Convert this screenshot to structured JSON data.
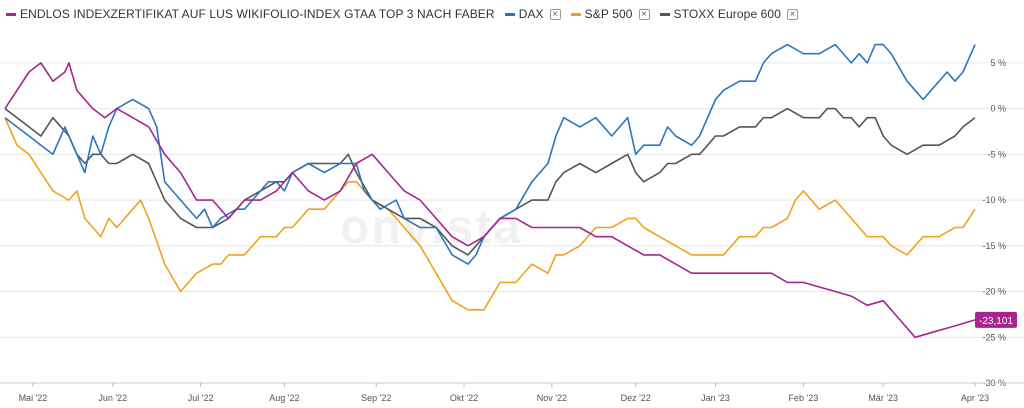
{
  "legend": [
    {
      "label": "ENDLOS INDEXZERTIFIKAT AUF LUS WIKIFOLIO-INDEX GTAA TOP 3 NACH FABER",
      "color": "#a8248f",
      "removable": false
    },
    {
      "label": "DAX",
      "color": "#2d76be",
      "removable": true,
      "remove_icon": "×"
    },
    {
      "label": "S&P 500",
      "color": "#f4a01f",
      "removable": true,
      "remove_icon": "×"
    },
    {
      "label": "STOXX Europe 600",
      "color": "#555555",
      "removable": true,
      "remove_icon": "×"
    }
  ],
  "watermark": "onvista",
  "last_value_label": "-23,101",
  "chart_data": {
    "type": "line",
    "x_unit": "trading day index from start of window",
    "x_tick_labels": [
      "Mai '22",
      "Jun '22",
      "Jul '22",
      "Aug '22",
      "Sep '22",
      "Okt '22",
      "Nov '22",
      "Dez '22",
      "Jan '23",
      "Feb '23",
      "Mär '23",
      "Apr '23"
    ],
    "x_tick_days": [
      7,
      27,
      49,
      70,
      93,
      115,
      137,
      158,
      178,
      200,
      220,
      243
    ],
    "x_range": [
      0,
      243
    ],
    "y_tick_labels": [
      "5 %",
      "0 %",
      "-5 %",
      "-10 %",
      "-15 %",
      "-20 %",
      "-25 %",
      "-30 %"
    ],
    "y_ticks": [
      5,
      0,
      -5,
      -10,
      -15,
      -20,
      -25,
      -30
    ],
    "ylim": [
      -30,
      7.5
    ],
    "grid": "horizontal",
    "legend_position": "top",
    "series": [
      {
        "name": "ENDLOS INDEXZERTIFIKAT AUF LUS WIKIFOLIO-INDEX GTAA TOP 3 NACH FABER",
        "color": "#a8248f",
        "points": [
          [
            0,
            0
          ],
          [
            3,
            2
          ],
          [
            6,
            4
          ],
          [
            9,
            5
          ],
          [
            12,
            3
          ],
          [
            15,
            4
          ],
          [
            16,
            5
          ],
          [
            18,
            2
          ],
          [
            22,
            0
          ],
          [
            25,
            -1
          ],
          [
            28,
            0
          ],
          [
            32,
            -1
          ],
          [
            36,
            -2
          ],
          [
            40,
            -5
          ],
          [
            44,
            -7
          ],
          [
            48,
            -10
          ],
          [
            52,
            -10
          ],
          [
            56,
            -12
          ],
          [
            60,
            -10
          ],
          [
            64,
            -10
          ],
          [
            68,
            -9
          ],
          [
            72,
            -7
          ],
          [
            76,
            -9
          ],
          [
            80,
            -10
          ],
          [
            84,
            -9
          ],
          [
            88,
            -6
          ],
          [
            92,
            -5
          ],
          [
            96,
            -7
          ],
          [
            100,
            -9
          ],
          [
            104,
            -10
          ],
          [
            108,
            -12
          ],
          [
            112,
            -14
          ],
          [
            116,
            -15
          ],
          [
            120,
            -14
          ],
          [
            124,
            -12
          ],
          [
            128,
            -12
          ],
          [
            132,
            -13
          ],
          [
            136,
            -13
          ],
          [
            140,
            -13
          ],
          [
            144,
            -13
          ],
          [
            148,
            -14
          ],
          [
            152,
            -14
          ],
          [
            156,
            -15
          ],
          [
            160,
            -16
          ],
          [
            164,
            -16
          ],
          [
            168,
            -17
          ],
          [
            172,
            -18
          ],
          [
            176,
            -18
          ],
          [
            180,
            -18
          ],
          [
            184,
            -18
          ],
          [
            188,
            -18
          ],
          [
            192,
            -18
          ],
          [
            196,
            -19
          ],
          [
            200,
            -19
          ],
          [
            204,
            -19.5
          ],
          [
            208,
            -20
          ],
          [
            212,
            -20.5
          ],
          [
            216,
            -21.5
          ],
          [
            220,
            -21
          ],
          [
            224,
            -23
          ],
          [
            228,
            -25
          ],
          [
            232,
            -24.5
          ],
          [
            236,
            -24
          ],
          [
            240,
            -23.5
          ],
          [
            243,
            -23.1
          ]
        ]
      },
      {
        "name": "DAX",
        "color": "#2d76be",
        "points": [
          [
            0,
            -1
          ],
          [
            3,
            -2
          ],
          [
            6,
            -3
          ],
          [
            9,
            -4
          ],
          [
            12,
            -5
          ],
          [
            15,
            -2
          ],
          [
            18,
            -5
          ],
          [
            20,
            -7
          ],
          [
            22,
            -3
          ],
          [
            24,
            -5
          ],
          [
            26,
            -2
          ],
          [
            28,
            0
          ],
          [
            32,
            1
          ],
          [
            36,
            0
          ],
          [
            38,
            -2
          ],
          [
            40,
            -8
          ],
          [
            44,
            -10
          ],
          [
            48,
            -12
          ],
          [
            50,
            -11
          ],
          [
            52,
            -13
          ],
          [
            54,
            -12
          ],
          [
            58,
            -11
          ],
          [
            60,
            -11
          ],
          [
            64,
            -9
          ],
          [
            66,
            -8
          ],
          [
            68,
            -8
          ],
          [
            70,
            -9
          ],
          [
            72,
            -7
          ],
          [
            76,
            -6
          ],
          [
            80,
            -7
          ],
          [
            84,
            -6
          ],
          [
            88,
            -6
          ],
          [
            90,
            -9
          ],
          [
            94,
            -11
          ],
          [
            98,
            -10
          ],
          [
            100,
            -12
          ],
          [
            104,
            -13
          ],
          [
            108,
            -13
          ],
          [
            112,
            -16
          ],
          [
            116,
            -17
          ],
          [
            118,
            -16
          ],
          [
            120,
            -14
          ],
          [
            124,
            -12
          ],
          [
            128,
            -11
          ],
          [
            132,
            -8
          ],
          [
            136,
            -6
          ],
          [
            138,
            -3
          ],
          [
            140,
            -1
          ],
          [
            144,
            -2
          ],
          [
            148,
            -1
          ],
          [
            152,
            -3
          ],
          [
            156,
            -1
          ],
          [
            158,
            -5
          ],
          [
            160,
            -4
          ],
          [
            164,
            -4
          ],
          [
            166,
            -2
          ],
          [
            168,
            -3
          ],
          [
            172,
            -4
          ],
          [
            174,
            -3
          ],
          [
            176,
            -1
          ],
          [
            178,
            1
          ],
          [
            180,
            2
          ],
          [
            184,
            3
          ],
          [
            188,
            3
          ],
          [
            190,
            5
          ],
          [
            192,
            6
          ],
          [
            196,
            7
          ],
          [
            200,
            6
          ],
          [
            204,
            6
          ],
          [
            208,
            7
          ],
          [
            212,
            5
          ],
          [
            214,
            6
          ],
          [
            216,
            5
          ],
          [
            218,
            7
          ],
          [
            220,
            7
          ],
          [
            222,
            6
          ],
          [
            226,
            3
          ],
          [
            230,
            1
          ],
          [
            232,
            2
          ],
          [
            236,
            4
          ],
          [
            238,
            3
          ],
          [
            240,
            4
          ],
          [
            242,
            6
          ],
          [
            243,
            7
          ]
        ]
      },
      {
        "name": "S&P 500",
        "color": "#f4a01f",
        "points": [
          [
            0,
            -1
          ],
          [
            3,
            -4
          ],
          [
            6,
            -5
          ],
          [
            9,
            -7
          ],
          [
            12,
            -9
          ],
          [
            16,
            -10
          ],
          [
            18,
            -9
          ],
          [
            20,
            -12
          ],
          [
            24,
            -14
          ],
          [
            26,
            -12
          ],
          [
            28,
            -13
          ],
          [
            32,
            -11
          ],
          [
            34,
            -10
          ],
          [
            36,
            -12
          ],
          [
            40,
            -17
          ],
          [
            44,
            -20
          ],
          [
            46,
            -19
          ],
          [
            48,
            -18
          ],
          [
            52,
            -17
          ],
          [
            54,
            -17
          ],
          [
            56,
            -16
          ],
          [
            60,
            -16
          ],
          [
            62,
            -15
          ],
          [
            64,
            -14
          ],
          [
            68,
            -14
          ],
          [
            70,
            -13
          ],
          [
            72,
            -13
          ],
          [
            76,
            -11
          ],
          [
            80,
            -11
          ],
          [
            84,
            -9
          ],
          [
            86,
            -8
          ],
          [
            88,
            -8
          ],
          [
            90,
            -9
          ],
          [
            92,
            -10
          ],
          [
            96,
            -11
          ],
          [
            100,
            -13
          ],
          [
            104,
            -15
          ],
          [
            108,
            -18
          ],
          [
            112,
            -21
          ],
          [
            116,
            -22
          ],
          [
            120,
            -22
          ],
          [
            124,
            -19
          ],
          [
            128,
            -19
          ],
          [
            132,
            -17
          ],
          [
            136,
            -18
          ],
          [
            138,
            -16
          ],
          [
            140,
            -16
          ],
          [
            144,
            -15
          ],
          [
            148,
            -13
          ],
          [
            152,
            -13
          ],
          [
            156,
            -12
          ],
          [
            158,
            -12
          ],
          [
            160,
            -13
          ],
          [
            164,
            -14
          ],
          [
            168,
            -15
          ],
          [
            172,
            -16
          ],
          [
            176,
            -16
          ],
          [
            180,
            -16
          ],
          [
            184,
            -14
          ],
          [
            188,
            -14
          ],
          [
            190,
            -13
          ],
          [
            192,
            -13
          ],
          [
            196,
            -12
          ],
          [
            198,
            -10
          ],
          [
            200,
            -9
          ],
          [
            204,
            -11
          ],
          [
            208,
            -10
          ],
          [
            212,
            -12
          ],
          [
            214,
            -13
          ],
          [
            216,
            -14
          ],
          [
            220,
            -14
          ],
          [
            222,
            -15
          ],
          [
            226,
            -16
          ],
          [
            230,
            -14
          ],
          [
            234,
            -14
          ],
          [
            238,
            -13
          ],
          [
            240,
            -13
          ],
          [
            243,
            -11
          ]
        ]
      },
      {
        "name": "STOXX Europe 600",
        "color": "#555555",
        "points": [
          [
            0,
            0
          ],
          [
            3,
            -1
          ],
          [
            6,
            -2
          ],
          [
            9,
            -3
          ],
          [
            12,
            -1
          ],
          [
            14,
            -2
          ],
          [
            16,
            -3
          ],
          [
            18,
            -5
          ],
          [
            20,
            -6
          ],
          [
            22,
            -5
          ],
          [
            24,
            -5
          ],
          [
            26,
            -6
          ],
          [
            28,
            -6
          ],
          [
            32,
            -5
          ],
          [
            36,
            -6
          ],
          [
            38,
            -8
          ],
          [
            40,
            -10
          ],
          [
            44,
            -12
          ],
          [
            48,
            -13
          ],
          [
            52,
            -13
          ],
          [
            56,
            -12
          ],
          [
            60,
            -10
          ],
          [
            64,
            -9
          ],
          [
            68,
            -8
          ],
          [
            70,
            -8
          ],
          [
            72,
            -7
          ],
          [
            76,
            -6
          ],
          [
            80,
            -6
          ],
          [
            84,
            -6
          ],
          [
            86,
            -5
          ],
          [
            88,
            -7
          ],
          [
            92,
            -10
          ],
          [
            96,
            -11
          ],
          [
            100,
            -12
          ],
          [
            104,
            -12
          ],
          [
            108,
            -13
          ],
          [
            112,
            -15
          ],
          [
            116,
            -16
          ],
          [
            118,
            -15
          ],
          [
            120,
            -14
          ],
          [
            124,
            -12
          ],
          [
            128,
            -11
          ],
          [
            132,
            -10
          ],
          [
            136,
            -10
          ],
          [
            138,
            -8
          ],
          [
            140,
            -7
          ],
          [
            144,
            -6
          ],
          [
            148,
            -7
          ],
          [
            152,
            -6
          ],
          [
            156,
            -5
          ],
          [
            158,
            -7
          ],
          [
            160,
            -8
          ],
          [
            164,
            -7
          ],
          [
            166,
            -6
          ],
          [
            168,
            -6
          ],
          [
            172,
            -5
          ],
          [
            174,
            -5
          ],
          [
            176,
            -4
          ],
          [
            178,
            -3
          ],
          [
            180,
            -3
          ],
          [
            184,
            -2
          ],
          [
            188,
            -2
          ],
          [
            190,
            -1
          ],
          [
            192,
            -1
          ],
          [
            196,
            0
          ],
          [
            200,
            -1
          ],
          [
            204,
            -1
          ],
          [
            206,
            0
          ],
          [
            208,
            0
          ],
          [
            210,
            -1
          ],
          [
            212,
            -1
          ],
          [
            214,
            -2
          ],
          [
            216,
            -1
          ],
          [
            218,
            -1
          ],
          [
            220,
            -3
          ],
          [
            222,
            -4
          ],
          [
            226,
            -5
          ],
          [
            230,
            -4
          ],
          [
            234,
            -4
          ],
          [
            238,
            -3
          ],
          [
            240,
            -2
          ],
          [
            243,
            -1
          ]
        ]
      }
    ]
  }
}
